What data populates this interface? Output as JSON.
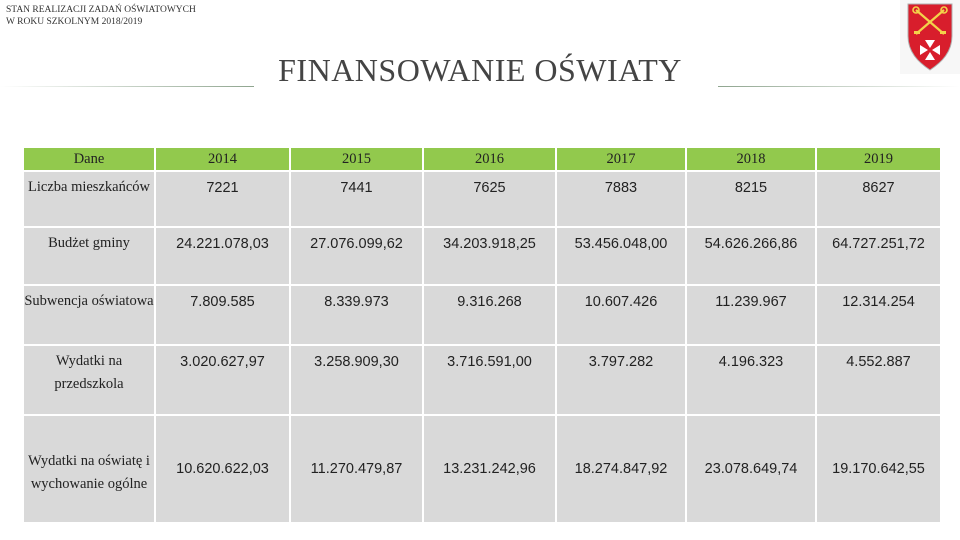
{
  "header": {
    "line1": "STAN REALIZACJI ZADAŃ OŚWIATOWYCH",
    "line2": "W ROKU SZKOLNYM 2018/2019"
  },
  "title": "FINANSOWANIE OŚWIATY",
  "table": {
    "columns": [
      "Dane",
      "2014",
      "2015",
      "2016",
      "2017",
      "2018",
      "2019"
    ],
    "rows": [
      {
        "label": "Liczba mieszkańców",
        "values": [
          "7221",
          "7441",
          "7625",
          "7883",
          "8215",
          "8627"
        ]
      },
      {
        "label": "Budżet gminy",
        "values": [
          "24.221.078,03",
          "27.076.099,62",
          "34.203.918,25",
          "53.456.048,00",
          "54.626.266,86",
          "64.727.251,72"
        ]
      },
      {
        "label": "Subwencja oświatowa",
        "values": [
          "7.809.585",
          "8.339.973",
          "9.316.268",
          "10.607.426",
          "11.239.967",
          "12.314.254"
        ]
      },
      {
        "label": "Wydatki na przedszkola",
        "values": [
          "3.020.627,97",
          "3.258.909,30",
          "3.716.591,00",
          "3.797.282",
          "4.196.323",
          "4.552.887"
        ]
      },
      {
        "label": "Wydatki na oświatę i wychowanie ogólne",
        "values": [
          "10.620.622,03",
          "11.270.479,87",
          "13.231.242,96",
          "18.274.847,92",
          "23.078.649,74",
          "19.170.642,55"
        ]
      }
    ]
  },
  "crest": {
    "colors": {
      "shield": "#d81e2c",
      "charge": "#f3d34a",
      "cross": "#ffffff"
    }
  }
}
